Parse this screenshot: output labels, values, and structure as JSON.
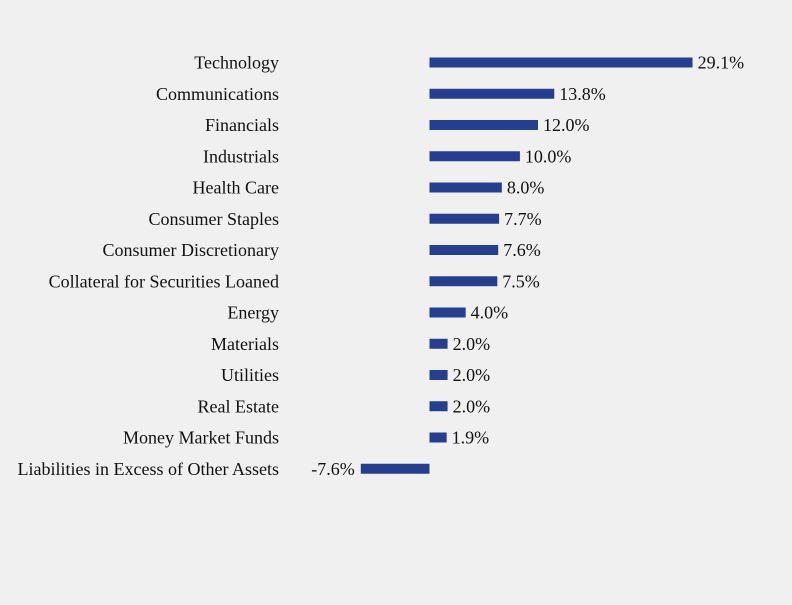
{
  "chart_data": {
    "type": "bar",
    "orientation": "horizontal",
    "categories": [
      "Technology",
      "Communications",
      "Financials",
      "Industrials",
      "Health Care",
      "Consumer Staples",
      "Consumer Discretionary",
      "Collateral for Securities Loaned",
      "Energy",
      "Materials",
      "Utilities",
      "Real Estate",
      "Money Market Funds",
      "Liabilities in Excess of Other Assets"
    ],
    "values": [
      29.1,
      13.8,
      12.0,
      10.0,
      8.0,
      7.7,
      7.6,
      7.5,
      4.0,
      2.0,
      2.0,
      2.0,
      1.9,
      -7.6
    ],
    "data_labels": [
      "29.1%",
      "13.8%",
      "12.0%",
      "10.0%",
      "8.0%",
      "7.7%",
      "7.6%",
      "7.5%",
      "4.0%",
      "2.0%",
      "2.0%",
      "2.0%",
      "1.9%",
      "-7.6%"
    ],
    "title": "",
    "xlabel": "",
    "ylabel": "",
    "bar_color": "#253f8e",
    "grid": false,
    "legend": "none"
  }
}
